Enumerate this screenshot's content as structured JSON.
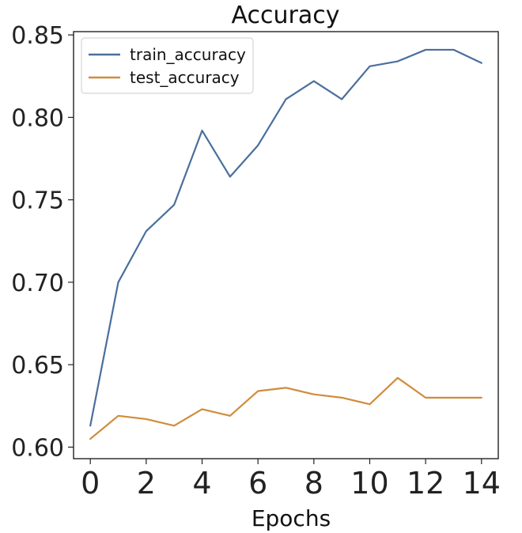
{
  "chart_data": {
    "type": "line",
    "title": "Accuracy",
    "xlabel": "Epochs",
    "ylabel": "",
    "x": [
      0,
      1,
      2,
      3,
      4,
      5,
      6,
      7,
      8,
      9,
      10,
      11,
      12,
      13,
      14
    ],
    "xlim": [
      -0.6,
      14.6
    ],
    "ylim": [
      0.593,
      0.852
    ],
    "xticks": [
      0,
      2,
      4,
      6,
      8,
      10,
      12,
      14
    ],
    "yticks": [
      0.6,
      0.65,
      0.7,
      0.75,
      0.8,
      0.85
    ],
    "ytick_labels": [
      "0.60",
      "0.65",
      "0.70",
      "0.75",
      "0.80",
      "0.85"
    ],
    "xtick_labels": [
      "0",
      "2",
      "4",
      "6",
      "8",
      "10",
      "12",
      "14"
    ],
    "grid": false,
    "legend_position": "top-left",
    "series": [
      {
        "name": "train_accuracy",
        "color": "#4a6f9c",
        "values": [
          0.613,
          0.7,
          0.731,
          0.747,
          0.792,
          0.764,
          0.783,
          0.811,
          0.822,
          0.811,
          0.831,
          0.834,
          0.841,
          0.841,
          0.833
        ]
      },
      {
        "name": "test_accuracy",
        "color": "#d08c3c",
        "values": [
          0.605,
          0.619,
          0.617,
          0.613,
          0.623,
          0.619,
          0.634,
          0.636,
          0.632,
          0.63,
          0.626,
          0.642,
          0.63,
          0.63,
          0.63
        ]
      }
    ]
  }
}
